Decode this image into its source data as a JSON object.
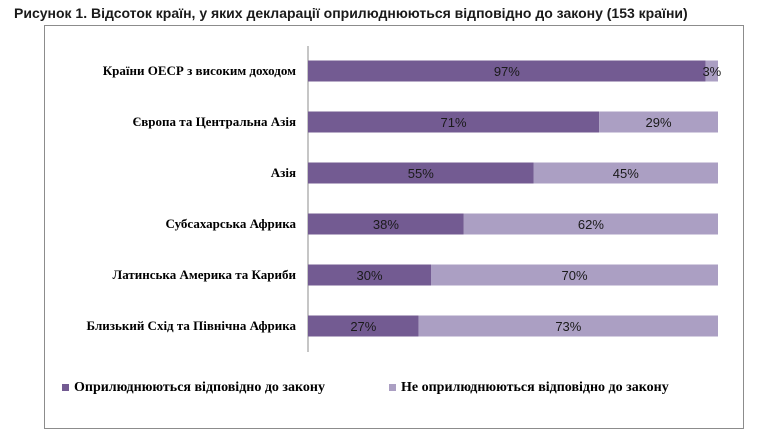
{
  "title": "Рисунок 1. Відсоток країн, у яких декларації оприлюднюються відповідно до закону (153 країни)",
  "chart_data": {
    "type": "bar",
    "orientation": "horizontal",
    "stacked": true,
    "percent": true,
    "categories": [
      "Країни ОЕСР з високим доходом",
      "Європа та Центральна Азія",
      "Азія",
      "Субсахарська Африка",
      "Латинська Америка та Кариби",
      "Близький Схід та Північна Африка"
    ],
    "series": [
      {
        "name": "Оприлюднюються відповідно до закону",
        "color": "#735b92",
        "values": [
          97,
          71,
          55,
          38,
          30,
          27
        ],
        "labels": [
          "97%",
          "71%",
          "55%",
          "38%",
          "30%",
          "27%"
        ]
      },
      {
        "name": "Не оприлюднюються відповідно до закону",
        "color": "#ab9fc3",
        "values": [
          3,
          29,
          45,
          62,
          70,
          73
        ],
        "labels": [
          "3%",
          "29%",
          "45%",
          "62%",
          "70%",
          "73%"
        ]
      }
    ],
    "xlim": [
      0,
      100
    ],
    "grid": false,
    "legend": "bottom"
  }
}
